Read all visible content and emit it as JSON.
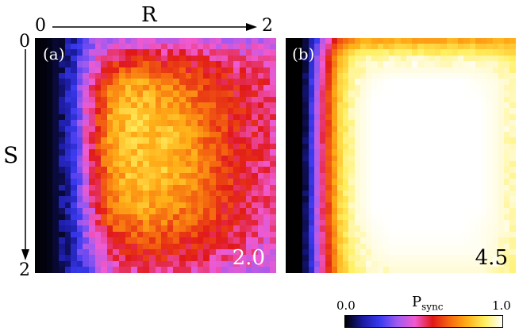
{
  "chart_data": {
    "type": "heatmap",
    "x_axis": {
      "label": "R",
      "min_label": "0",
      "max_label": "2",
      "range": [
        0,
        2
      ]
    },
    "y_axis": {
      "label": "S",
      "min_label": "0",
      "max_label": "2",
      "range": [
        0,
        2
      ],
      "direction": "downward"
    },
    "panels": [
      {
        "tag": "(a)",
        "value_label": "2.0",
        "grid": [
          [
            0.0,
            0.02,
            0.12,
            0.28,
            0.36,
            0.38,
            0.38,
            0.38,
            0.38,
            0.38,
            0.38,
            0.38,
            0.36,
            0.34
          ],
          [
            0.0,
            0.02,
            0.15,
            0.38,
            0.52,
            0.56,
            0.57,
            0.56,
            0.55,
            0.52,
            0.5,
            0.48,
            0.45,
            0.42
          ],
          [
            0.0,
            0.02,
            0.17,
            0.45,
            0.65,
            0.74,
            0.74,
            0.7,
            0.66,
            0.62,
            0.58,
            0.55,
            0.52,
            0.48
          ],
          [
            0.0,
            0.02,
            0.18,
            0.48,
            0.72,
            0.8,
            0.8,
            0.76,
            0.72,
            0.66,
            0.6,
            0.56,
            0.52,
            0.48
          ],
          [
            0.0,
            0.02,
            0.18,
            0.5,
            0.74,
            0.82,
            0.82,
            0.8,
            0.76,
            0.68,
            0.62,
            0.56,
            0.52,
            0.48
          ],
          [
            0.0,
            0.02,
            0.18,
            0.5,
            0.74,
            0.82,
            0.82,
            0.8,
            0.76,
            0.7,
            0.62,
            0.56,
            0.52,
            0.48
          ],
          [
            0.0,
            0.02,
            0.18,
            0.48,
            0.72,
            0.8,
            0.82,
            0.8,
            0.76,
            0.7,
            0.62,
            0.56,
            0.52,
            0.48
          ],
          [
            0.0,
            0.02,
            0.17,
            0.46,
            0.7,
            0.78,
            0.8,
            0.78,
            0.74,
            0.68,
            0.62,
            0.56,
            0.52,
            0.48
          ],
          [
            0.0,
            0.02,
            0.16,
            0.44,
            0.66,
            0.74,
            0.76,
            0.74,
            0.7,
            0.66,
            0.6,
            0.55,
            0.5,
            0.46
          ],
          [
            0.0,
            0.02,
            0.15,
            0.4,
            0.6,
            0.66,
            0.68,
            0.66,
            0.64,
            0.6,
            0.56,
            0.52,
            0.48,
            0.44
          ],
          [
            0.0,
            0.02,
            0.14,
            0.36,
            0.5,
            0.56,
            0.58,
            0.58,
            0.56,
            0.54,
            0.5,
            0.48,
            0.44,
            0.42
          ],
          [
            0.0,
            0.02,
            0.12,
            0.3,
            0.42,
            0.46,
            0.48,
            0.48,
            0.46,
            0.44,
            0.42,
            0.4,
            0.38,
            0.36
          ]
        ]
      },
      {
        "tag": "(b)",
        "value_label": "4.5",
        "grid": [
          [
            0.0,
            0.0,
            0.3,
            0.62,
            0.72,
            0.74,
            0.74,
            0.74,
            0.74,
            0.74,
            0.74,
            0.74,
            0.74,
            0.74
          ],
          [
            0.0,
            0.0,
            0.4,
            0.78,
            0.92,
            0.95,
            0.96,
            0.96,
            0.96,
            0.96,
            0.96,
            0.96,
            0.95,
            0.9
          ],
          [
            0.0,
            0.0,
            0.45,
            0.82,
            0.96,
            0.99,
            1.0,
            1.0,
            1.0,
            1.0,
            1.0,
            0.99,
            0.98,
            0.94
          ],
          [
            0.0,
            0.0,
            0.46,
            0.84,
            0.97,
            1.0,
            1.0,
            1.0,
            1.0,
            1.0,
            1.0,
            1.0,
            0.98,
            0.94
          ],
          [
            0.0,
            0.0,
            0.46,
            0.84,
            0.97,
            1.0,
            1.0,
            1.0,
            1.0,
            1.0,
            1.0,
            1.0,
            0.98,
            0.94
          ],
          [
            0.0,
            0.0,
            0.46,
            0.84,
            0.97,
            1.0,
            1.0,
            1.0,
            1.0,
            1.0,
            1.0,
            1.0,
            0.98,
            0.94
          ],
          [
            0.0,
            0.0,
            0.46,
            0.84,
            0.97,
            1.0,
            1.0,
            1.0,
            1.0,
            1.0,
            1.0,
            1.0,
            0.98,
            0.94
          ],
          [
            0.0,
            0.0,
            0.46,
            0.84,
            0.97,
            1.0,
            1.0,
            1.0,
            1.0,
            1.0,
            1.0,
            1.0,
            0.98,
            0.94
          ],
          [
            0.0,
            0.0,
            0.46,
            0.84,
            0.97,
            1.0,
            1.0,
            1.0,
            1.0,
            1.0,
            1.0,
            1.0,
            0.98,
            0.94
          ],
          [
            0.0,
            0.0,
            0.45,
            0.82,
            0.96,
            0.99,
            1.0,
            1.0,
            1.0,
            1.0,
            1.0,
            0.99,
            0.98,
            0.94
          ],
          [
            0.0,
            0.0,
            0.44,
            0.8,
            0.94,
            0.98,
            0.99,
            0.99,
            0.99,
            0.99,
            0.99,
            0.99,
            0.97,
            0.93
          ],
          [
            0.0,
            0.0,
            0.42,
            0.78,
            0.92,
            0.96,
            0.97,
            0.97,
            0.97,
            0.97,
            0.97,
            0.97,
            0.96,
            0.92
          ]
        ]
      }
    ],
    "colorbar": {
      "label": "P",
      "label_sub": "sync",
      "min_label": "0.0",
      "max_label": "1.0",
      "range": [
        0.0,
        1.0
      ],
      "colors": [
        "#000000",
        "#1a1aa0",
        "#3a3af0",
        "#a05af0",
        "#f05ad0",
        "#e01818",
        "#f56a10",
        "#ffb018",
        "#fff060",
        "#ffffff"
      ]
    }
  },
  "colors": {
    "panel_b_value_text": "#000000",
    "panel_a_value_text": "#ffffff",
    "panel_tag_text": "#ffffff"
  }
}
